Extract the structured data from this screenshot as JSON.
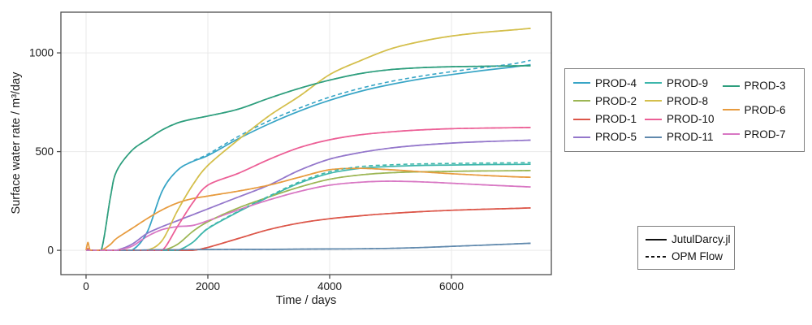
{
  "chart_data": {
    "type": "line",
    "title": "",
    "xlabel": "Time / days",
    "ylabel": "Surface water rate / m³/day",
    "xlim": [
      -413,
      7640
    ],
    "ylim": [
      -123,
      1206
    ],
    "xticks": [
      0,
      2000,
      4000,
      6000
    ],
    "yticks": [
      0,
      500,
      1000
    ],
    "grid": true,
    "legend_position": "right",
    "x_days": [
      0,
      30,
      60,
      100,
      250,
      400,
      500,
      750,
      1000,
      1250,
      1500,
      1750,
      2000,
      2500,
      3000,
      3500,
      4000,
      4500,
      5000,
      5500,
      6000,
      6500,
      7000,
      7300
    ],
    "series": [
      {
        "name": "PROD-4",
        "color": "#38a5c6",
        "values": [
          0,
          0,
          0,
          0,
          0,
          0,
          0,
          0,
          90,
          300,
          405,
          450,
          480,
          565,
          640,
          705,
          760,
          805,
          840,
          868,
          890,
          910,
          928,
          940
        ],
        "values_opm": [
          0,
          0,
          0,
          0,
          0,
          0,
          0,
          0,
          90,
          300,
          405,
          452,
          487,
          577,
          655,
          720,
          776,
          820,
          855,
          882,
          905,
          925,
          944,
          962
        ]
      },
      {
        "name": "PROD-2",
        "color": "#9cb654",
        "values": [
          0,
          0,
          0,
          0,
          0,
          0,
          0,
          0,
          0,
          0,
          30,
          95,
          145,
          215,
          270,
          320,
          360,
          382,
          393,
          398,
          400,
          402,
          403,
          404
        ]
      },
      {
        "name": "PROD-1",
        "color": "#dc5649",
        "values": [
          0,
          8,
          0,
          0,
          0,
          0,
          0,
          0,
          0,
          0,
          0,
          0,
          15,
          60,
          105,
          138,
          160,
          175,
          187,
          196,
          203,
          208,
          212,
          215
        ]
      },
      {
        "name": "PROD-5",
        "color": "#9477cb",
        "values": [
          0,
          0,
          0,
          0,
          0,
          0,
          0,
          30,
          85,
          120,
          150,
          180,
          210,
          270,
          330,
          405,
          462,
          495,
          518,
          533,
          543,
          550,
          555,
          558
        ]
      },
      {
        "name": "PROD-9",
        "color": "#3db6ab",
        "values": [
          0,
          0,
          0,
          0,
          0,
          0,
          0,
          0,
          0,
          0,
          0,
          40,
          110,
          195,
          270,
          340,
          390,
          415,
          425,
          430,
          432,
          434,
          435,
          436
        ],
        "values_opm": [
          0,
          0,
          0,
          0,
          0,
          0,
          0,
          0,
          0,
          0,
          0,
          40,
          112,
          198,
          274,
          346,
          398,
          424,
          433,
          438,
          440,
          442,
          443,
          444
        ]
      },
      {
        "name": "PROD-8",
        "color": "#d4bf4c",
        "values": [
          0,
          0,
          0,
          0,
          0,
          0,
          0,
          0,
          0,
          50,
          200,
          330,
          430,
          560,
          680,
          780,
          890,
          960,
          1020,
          1058,
          1085,
          1103,
          1116,
          1124
        ]
      },
      {
        "name": "PROD-10",
        "color": "#ec5f96",
        "values": [
          0,
          0,
          0,
          0,
          0,
          0,
          0,
          0,
          0,
          0,
          120,
          240,
          330,
          390,
          460,
          520,
          560,
          585,
          600,
          610,
          616,
          619,
          621,
          622
        ]
      },
      {
        "name": "PROD-11",
        "color": "#6089ad",
        "values": [
          0,
          0,
          0,
          0,
          0,
          0,
          0,
          0,
          2,
          3,
          3,
          4,
          4,
          5,
          5,
          6,
          7,
          8,
          10,
          14,
          20,
          26,
          32,
          36
        ]
      },
      {
        "name": "PROD-3",
        "color": "#2d9e7d",
        "values": [
          0,
          0,
          0,
          0,
          0,
          270,
          400,
          505,
          560,
          610,
          645,
          665,
          680,
          715,
          770,
          820,
          862,
          895,
          915,
          925,
          930,
          932,
          934,
          935
        ]
      },
      {
        "name": "PROD-6",
        "color": "#e79b3e",
        "values": [
          0,
          40,
          5,
          0,
          0,
          30,
          60,
          110,
          160,
          205,
          240,
          262,
          275,
          300,
          330,
          370,
          408,
          415,
          408,
          398,
          388,
          380,
          373,
          370
        ]
      },
      {
        "name": "PROD-7",
        "color": "#d877c3",
        "values": [
          0,
          0,
          0,
          0,
          0,
          0,
          0,
          20,
          70,
          105,
          120,
          126,
          150,
          205,
          255,
          298,
          330,
          345,
          350,
          347,
          340,
          332,
          325,
          321
        ]
      }
    ]
  },
  "series_legend": {
    "columns": [
      [
        "PROD-4",
        "PROD-2",
        "PROD-1",
        "PROD-5"
      ],
      [
        "PROD-9",
        "PROD-8",
        "PROD-10",
        "PROD-11"
      ],
      [
        "PROD-3",
        "PROD-6",
        "PROD-7"
      ]
    ]
  },
  "style_legend": {
    "items": [
      {
        "label": "JutulDarcy.jl",
        "dashed": false
      },
      {
        "label": "OPM Flow",
        "dashed": true
      }
    ]
  },
  "colors": {
    "spine": "#4d4d4d",
    "grid": "#e9e9e9",
    "tick_text": "#1a1a1a",
    "legend_border": "#7f7f7f"
  }
}
